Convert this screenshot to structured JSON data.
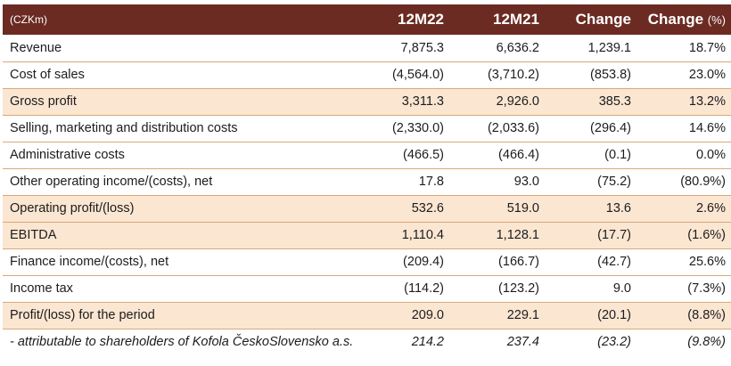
{
  "table": {
    "header": {
      "label": "(CZKm)",
      "col1": "12M22",
      "col2": "12M21",
      "col3": "Change",
      "col4_main": "Change",
      "col4_unit": "(%)"
    },
    "rows": [
      {
        "label": "Revenue",
        "v1": "7,875.3",
        "v2": "6,636.2",
        "v3": "1,239.1",
        "v4": "18.7%",
        "highlight": false
      },
      {
        "label": "Cost of sales",
        "v1": "(4,564.0)",
        "v2": "(3,710.2)",
        "v3": "(853.8)",
        "v4": "23.0%",
        "highlight": false
      },
      {
        "label": "Gross profit",
        "v1": "3,311.3",
        "v2": "2,926.0",
        "v3": "385.3",
        "v4": "13.2%",
        "highlight": true
      },
      {
        "label": "Selling, marketing and distribution costs",
        "v1": "(2,330.0)",
        "v2": "(2,033.6)",
        "v3": "(296.4)",
        "v4": "14.6%",
        "highlight": false
      },
      {
        "label": "Administrative costs",
        "v1": "(466.5)",
        "v2": "(466.4)",
        "v3": "(0.1)",
        "v4": "0.0%",
        "highlight": false
      },
      {
        "label": "Other operating income/(costs), net",
        "v1": "17.8",
        "v2": "93.0",
        "v3": "(75.2)",
        "v4": "(80.9%)",
        "highlight": false
      },
      {
        "label": "Operating profit/(loss)",
        "v1": "532.6",
        "v2": "519.0",
        "v3": "13.6",
        "v4": "2.6%",
        "highlight": true
      },
      {
        "label": "EBITDA",
        "v1": "1,110.4",
        "v2": "1,128.1",
        "v3": "(17.7)",
        "v4": "(1.6%)",
        "highlight": true
      },
      {
        "label": "Finance income/(costs), net",
        "v1": "(209.4)",
        "v2": "(166.7)",
        "v3": "(42.7)",
        "v4": "25.6%",
        "highlight": false
      },
      {
        "label": "Income tax",
        "v1": "(114.2)",
        "v2": "(123.2)",
        "v3": "9.0",
        "v4": "(7.3%)",
        "highlight": false
      },
      {
        "label": "Profit/(loss) for the period",
        "v1": "209.0",
        "v2": "229.1",
        "v3": "(20.1)",
        "v4": "(8.8%)",
        "highlight": true
      },
      {
        "label": "- attributable to shareholders of Kofola ČeskoSlovensko a.s.",
        "v1": "214.2",
        "v2": "237.4",
        "v3": "(23.2)",
        "v4": "(9.8%)",
        "highlight": false
      }
    ]
  },
  "colors": {
    "header_bg": "#6b2b22",
    "highlight_bg": "#fbe6d2",
    "row_border": "#d9a978"
  }
}
